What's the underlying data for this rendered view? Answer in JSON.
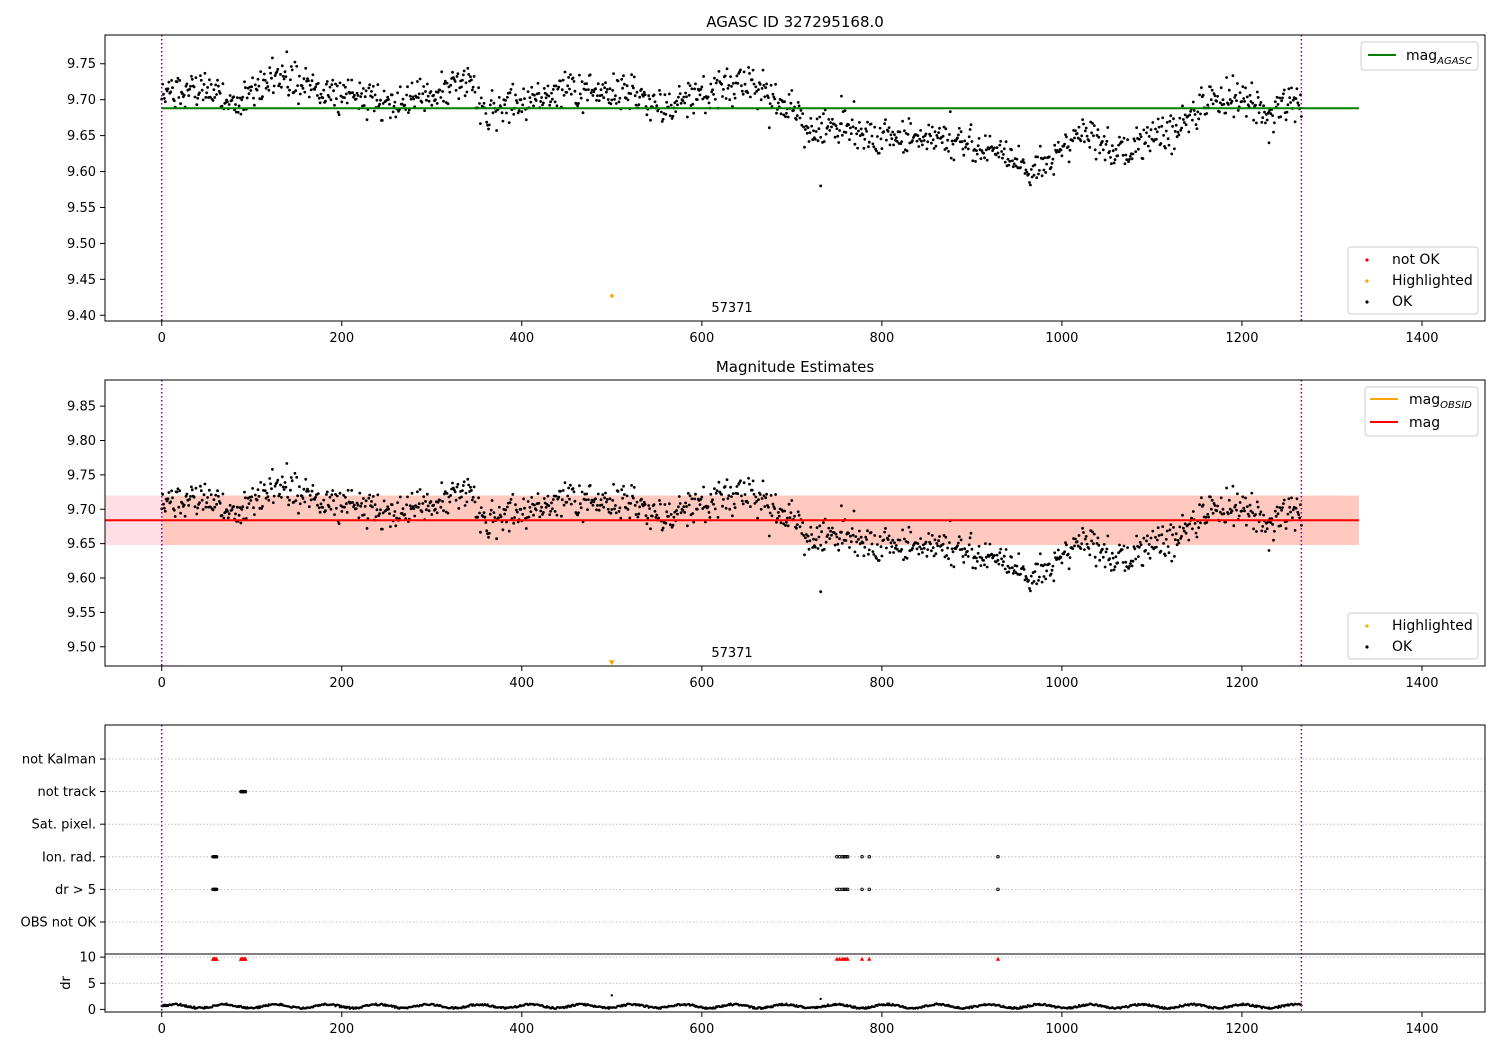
{
  "colors": {
    "ok": "#000000",
    "not_ok": "#ff0000",
    "highlighted": "#ffa500",
    "mag_agasc": "#008000",
    "mag_obsid": "#ffa500",
    "mag": "#ff0000",
    "band_outer": "#ffc0cb",
    "band_inner": "#ffa07a",
    "boundary": "#800080",
    "grid": "#b0b0b0"
  },
  "chart_data": [
    {
      "type": "scatter",
      "title": "AGASC ID 327295168.0",
      "xlim": [
        -63,
        1470
      ],
      "ylim": [
        9.392,
        9.79
      ],
      "xticks": [
        0,
        200,
        400,
        600,
        800,
        1000,
        1200,
        1400
      ],
      "yticks": [
        9.4,
        9.45,
        9.5,
        9.55,
        9.6,
        9.65,
        9.7,
        9.75
      ],
      "ytick_labels": [
        "9.40",
        "9.45",
        "9.50",
        "9.55",
        "9.60",
        "9.65",
        "9.70",
        "9.75"
      ],
      "mag_agasc": 9.688,
      "hline_xrange": [
        0,
        1330
      ],
      "vlines": [
        0,
        1266
      ],
      "annotation": {
        "text": "57371",
        "x": 632,
        "y": 9.405
      },
      "highlighted_points": [
        {
          "x": 500,
          "y": 9.427
        }
      ],
      "trend": [
        [
          0,
          9.715
        ],
        [
          50,
          9.71
        ],
        [
          90,
          9.695
        ],
        [
          120,
          9.735
        ],
        [
          150,
          9.72
        ],
        [
          180,
          9.71
        ],
        [
          210,
          9.715
        ],
        [
          250,
          9.69
        ],
        [
          300,
          9.71
        ],
        [
          340,
          9.73
        ],
        [
          360,
          9.685
        ],
        [
          420,
          9.705
        ],
        [
          470,
          9.715
        ],
        [
          520,
          9.71
        ],
        [
          560,
          9.69
        ],
        [
          600,
          9.705
        ],
        [
          650,
          9.725
        ],
        [
          700,
          9.68
        ],
        [
          720,
          9.66
        ],
        [
          760,
          9.66
        ],
        [
          800,
          9.64
        ],
        [
          850,
          9.65
        ],
        [
          900,
          9.635
        ],
        [
          940,
          9.625
        ],
        [
          965,
          9.6
        ],
        [
          990,
          9.625
        ],
        [
          1020,
          9.65
        ],
        [
          1040,
          9.645
        ],
        [
          1060,
          9.625
        ],
        [
          1100,
          9.645
        ],
        [
          1130,
          9.665
        ],
        [
          1160,
          9.695
        ],
        [
          1200,
          9.7
        ],
        [
          1230,
          9.68
        ],
        [
          1266,
          9.7
        ]
      ],
      "outliers": [
        [
          732,
          9.58
        ],
        [
          755,
          9.705
        ],
        [
          1230,
          9.64
        ]
      ],
      "legends": [
        {
          "position": "upper-right",
          "entries": [
            {
              "kind": "line",
              "color_key": "mag_agasc",
              "label": "mag",
              "sub": "AGASC"
            }
          ]
        },
        {
          "position": "lower-right",
          "entries": [
            {
              "kind": "dot",
              "color_key": "not_ok",
              "label": "not OK"
            },
            {
              "kind": "dot",
              "color_key": "highlighted",
              "label": "Highlighted"
            },
            {
              "kind": "dot",
              "color_key": "ok",
              "label": "OK"
            }
          ]
        }
      ]
    },
    {
      "type": "scatter",
      "title": "Magnitude Estimates",
      "xlim": [
        -63,
        1470
      ],
      "ylim": [
        9.472,
        9.888
      ],
      "xticks": [
        0,
        200,
        400,
        600,
        800,
        1000,
        1200,
        1400
      ],
      "yticks": [
        9.5,
        9.55,
        9.6,
        9.65,
        9.7,
        9.75,
        9.8,
        9.85
      ],
      "ytick_labels": [
        "9.50",
        "9.55",
        "9.60",
        "9.65",
        "9.70",
        "9.75",
        "9.80",
        "9.85"
      ],
      "mag": 9.684,
      "mag_obsid": 9.684,
      "band": [
        9.648,
        9.72
      ],
      "band_outer_xrange": [
        -63,
        1330
      ],
      "band_inner_xrange": [
        0,
        1330
      ],
      "hline_xrange": [
        -63,
        1330
      ],
      "vlines": [
        0,
        1266
      ],
      "annotation": {
        "text": "57371",
        "x": 632,
        "y": 9.486
      },
      "highlighted_marker": {
        "x": 500,
        "y": 9.476
      },
      "trend": [
        [
          0,
          9.715
        ],
        [
          50,
          9.71
        ],
        [
          90,
          9.695
        ],
        [
          120,
          9.735
        ],
        [
          150,
          9.72
        ],
        [
          180,
          9.71
        ],
        [
          210,
          9.715
        ],
        [
          250,
          9.69
        ],
        [
          300,
          9.71
        ],
        [
          340,
          9.73
        ],
        [
          360,
          9.685
        ],
        [
          420,
          9.705
        ],
        [
          470,
          9.715
        ],
        [
          520,
          9.71
        ],
        [
          560,
          9.69
        ],
        [
          600,
          9.705
        ],
        [
          650,
          9.725
        ],
        [
          700,
          9.68
        ],
        [
          720,
          9.66
        ],
        [
          760,
          9.66
        ],
        [
          800,
          9.64
        ],
        [
          850,
          9.65
        ],
        [
          900,
          9.635
        ],
        [
          940,
          9.625
        ],
        [
          965,
          9.6
        ],
        [
          990,
          9.625
        ],
        [
          1020,
          9.65
        ],
        [
          1040,
          9.645
        ],
        [
          1060,
          9.625
        ],
        [
          1100,
          9.645
        ],
        [
          1130,
          9.665
        ],
        [
          1160,
          9.695
        ],
        [
          1200,
          9.7
        ],
        [
          1230,
          9.68
        ],
        [
          1266,
          9.7
        ]
      ],
      "outliers": [
        [
          732,
          9.58
        ],
        [
          755,
          9.705
        ],
        [
          1230,
          9.64
        ]
      ],
      "legends": [
        {
          "position": "upper-right",
          "entries": [
            {
              "kind": "line",
              "color_key": "mag_obsid",
              "label": "mag",
              "sub": "OBSID"
            },
            {
              "kind": "line",
              "color_key": "mag",
              "label": "mag",
              "sub": ""
            }
          ]
        },
        {
          "position": "lower-right",
          "entries": [
            {
              "kind": "dot",
              "color_key": "highlighted",
              "label": "Highlighted"
            },
            {
              "kind": "dot",
              "color_key": "ok",
              "label": "OK"
            }
          ]
        }
      ]
    },
    {
      "type": "scatter",
      "title": "",
      "xlim": [
        -63,
        1470
      ],
      "xticks": [
        0,
        200,
        400,
        600,
        800,
        1000,
        1200,
        1400
      ],
      "vlines": [
        0,
        1266
      ],
      "categories": [
        "not Kalman",
        "not track",
        "Sat. pixel.",
        "Ion. rad.",
        "dr > 5",
        "OBS not OK"
      ],
      "flag_points": [
        {
          "category": "not track",
          "x": [
            88,
            89,
            90,
            91,
            92,
            93
          ]
        },
        {
          "category": "Ion. rad.",
          "x": [
            57,
            58,
            59,
            60,
            61,
            750,
            753,
            756,
            758,
            760,
            762,
            778,
            786,
            929
          ]
        },
        {
          "category": "dr > 5",
          "x": [
            57,
            58,
            59,
            60,
            61,
            750,
            753,
            756,
            758,
            760,
            762,
            778,
            786,
            929
          ]
        }
      ],
      "dr_ylabel": "dr",
      "dr_ylim": [
        -0.5,
        10.6
      ],
      "dr_yticks": [
        0,
        5,
        10
      ],
      "dr_ytick_labels": [
        "0",
        "5",
        "10"
      ],
      "dr_clipped_x": [
        57,
        58,
        59,
        60,
        61,
        88,
        89,
        90,
        91,
        92,
        93,
        750,
        753,
        756,
        758,
        760,
        762,
        778,
        786,
        929
      ],
      "dr_clipped_value": 9.7,
      "dr_spikes": [
        [
          500,
          2.7
        ],
        [
          732,
          2.0
        ]
      ],
      "dr_baseline": 0.6
    }
  ]
}
